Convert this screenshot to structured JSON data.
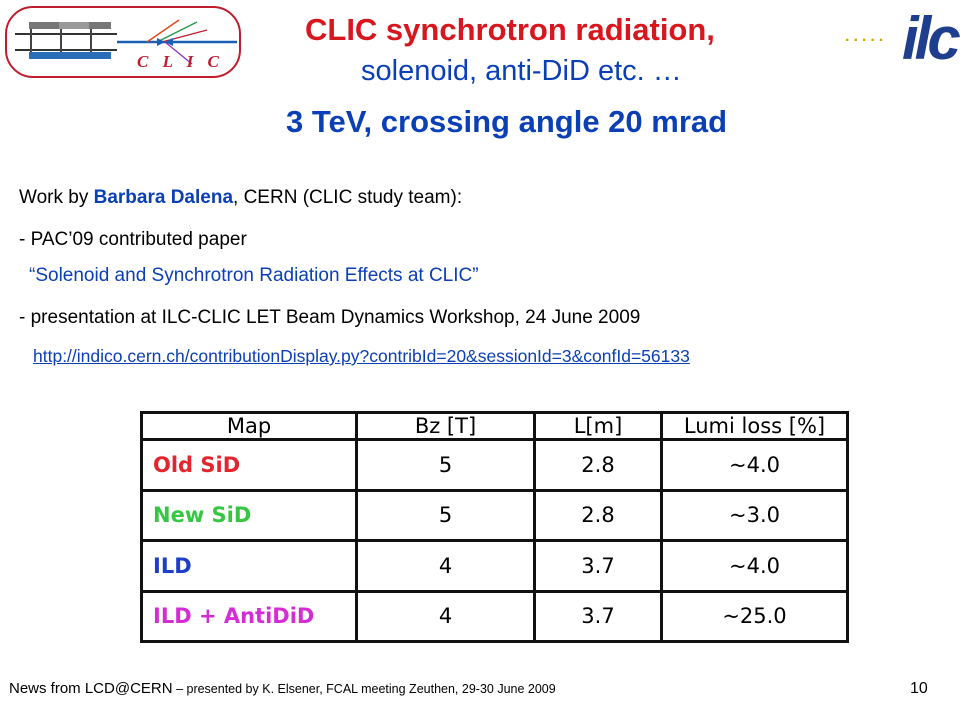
{
  "logo": {
    "clic_text": "C L I C",
    "ilc_text": "ilc",
    "ilc_dots": "....."
  },
  "title": {
    "line1": "CLIC synchrotron radiation,",
    "line2": "solenoid, anti-DiD etc. …",
    "line3": "3 TeV, crossing angle 20 mrad"
  },
  "body": {
    "work_prefix": "Work by ",
    "author": "Barbara Dalena",
    "work_suffix": ", CERN (CLIC study team):",
    "pac_line": "- PAC’09 contributed paper",
    "paper_title": "“Solenoid and Synchrotron Radiation Effects at CLIC”",
    "presentation_line": "- presentation at ILC-CLIC LET Beam Dynamics Workshop, 24 June 2009",
    "link": "http://indico.cern.ch/contributionDisplay.py?contribId=20&sessionId=3&confId=56133"
  },
  "table": {
    "headers": [
      "Map",
      "Bz [T]",
      "L[m]",
      "Lumi loss [%]"
    ],
    "rows": [
      {
        "map": "Old SiD",
        "bz": "5",
        "l": "2.8",
        "loss": "~4.0",
        "color": "#e5242b"
      },
      {
        "map": "New SiD",
        "bz": "5",
        "l": "2.8",
        "loss": "~3.0",
        "color": "#35c742"
      },
      {
        "map": "ILD",
        "bz": "4",
        "l": "3.7",
        "loss": "~4.0",
        "color": "#1d3ec9"
      },
      {
        "map": "ILD + AntiDiD",
        "bz": "4",
        "l": "3.7",
        "loss": "~25.0",
        "color": "#d62cd6"
      }
    ]
  },
  "footer": {
    "news": "News from LCD@CERN",
    "presented": " – presented by K. Elsener, FCAL meeting Zeuthen, 29-30 June 2009",
    "page": "10"
  }
}
